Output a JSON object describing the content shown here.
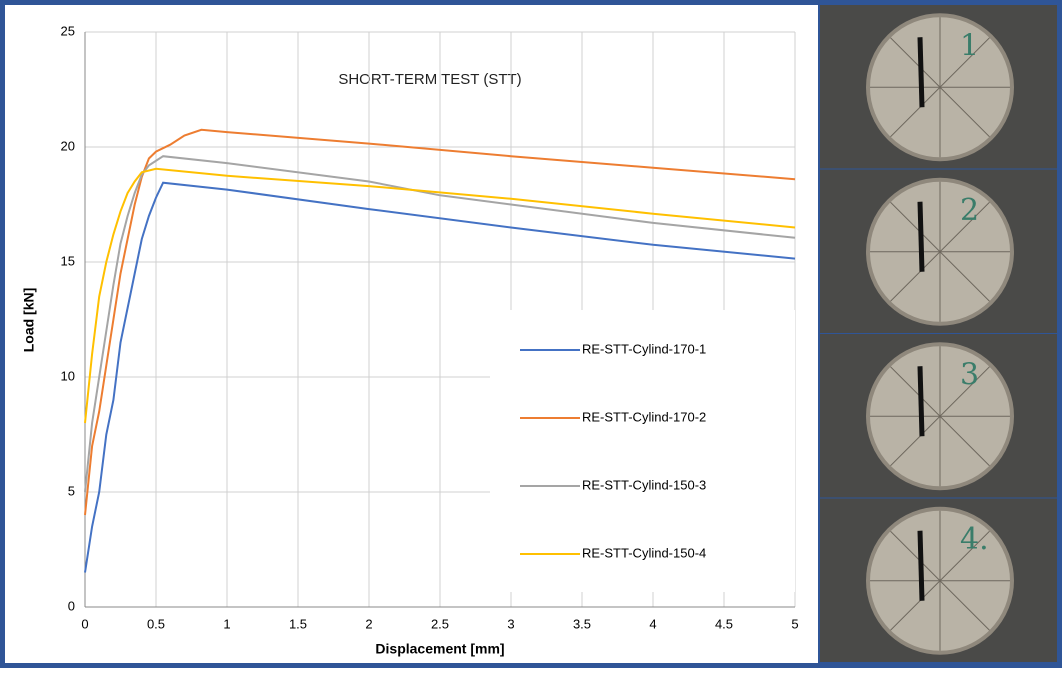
{
  "chart_data": {
    "type": "line",
    "title": "SHORT-TERM TEST (STT)",
    "x_label": "Displacement [mm]",
    "y_label": "Load [kN]",
    "xlim": [
      0,
      5
    ],
    "xticks": [
      0,
      0.5,
      1,
      1.5,
      2,
      2.5,
      3,
      3.5,
      4,
      4.5,
      5
    ],
    "ylim": [
      0,
      25
    ],
    "yticks": [
      0,
      5,
      10,
      15,
      20,
      25
    ],
    "grid": true,
    "legend": "right",
    "series": [
      {
        "name": "RE-STT-Cylind-170-1",
        "color": "#4472c4",
        "x": [
          0,
          0.05,
          0.1,
          0.15,
          0.2,
          0.25,
          0.3,
          0.35,
          0.4,
          0.45,
          0.5,
          0.55,
          1,
          2,
          3,
          4,
          5
        ],
        "values": [
          1.5,
          3.5,
          5,
          7.5,
          9,
          11.5,
          13,
          14.5,
          16,
          17,
          17.8,
          18.45,
          18.15,
          17.3,
          16.5,
          15.75,
          15.15
        ]
      },
      {
        "name": "RE-STT-Cylind-170-2",
        "color": "#ed7d31",
        "x": [
          0,
          0.05,
          0.1,
          0.15,
          0.2,
          0.25,
          0.3,
          0.35,
          0.4,
          0.45,
          0.5,
          0.6,
          0.7,
          0.82,
          1,
          2,
          3,
          4,
          5
        ],
        "values": [
          4,
          7,
          8.5,
          10.5,
          12.5,
          14.5,
          16,
          17.5,
          18.7,
          19.5,
          19.8,
          20.1,
          20.5,
          20.75,
          20.65,
          20.15,
          19.6,
          19.1,
          18.6
        ]
      },
      {
        "name": "RE-STT-Cylind-150-3",
        "color": "#a5a5a5",
        "x": [
          0,
          0.05,
          0.1,
          0.15,
          0.2,
          0.25,
          0.3,
          0.35,
          0.4,
          0.45,
          0.55,
          1,
          2,
          2.5,
          3,
          4,
          5
        ],
        "values": [
          5,
          8,
          10,
          12,
          14,
          15.8,
          17,
          18,
          18.8,
          19.2,
          19.6,
          19.3,
          18.5,
          17.9,
          17.5,
          16.7,
          16.05
        ]
      },
      {
        "name": "RE-STT-Cylind-150-4",
        "color": "#ffc000",
        "x": [
          0,
          0.05,
          0.1,
          0.15,
          0.2,
          0.25,
          0.3,
          0.35,
          0.4,
          0.5,
          1,
          2,
          3,
          4,
          5
        ],
        "values": [
          8,
          11,
          13.5,
          15,
          16.2,
          17.2,
          18,
          18.5,
          18.9,
          19.05,
          18.75,
          18.3,
          17.75,
          17.1,
          16.5
        ]
      }
    ],
    "photo_labels": [
      "1",
      "2",
      "3",
      "4."
    ]
  }
}
